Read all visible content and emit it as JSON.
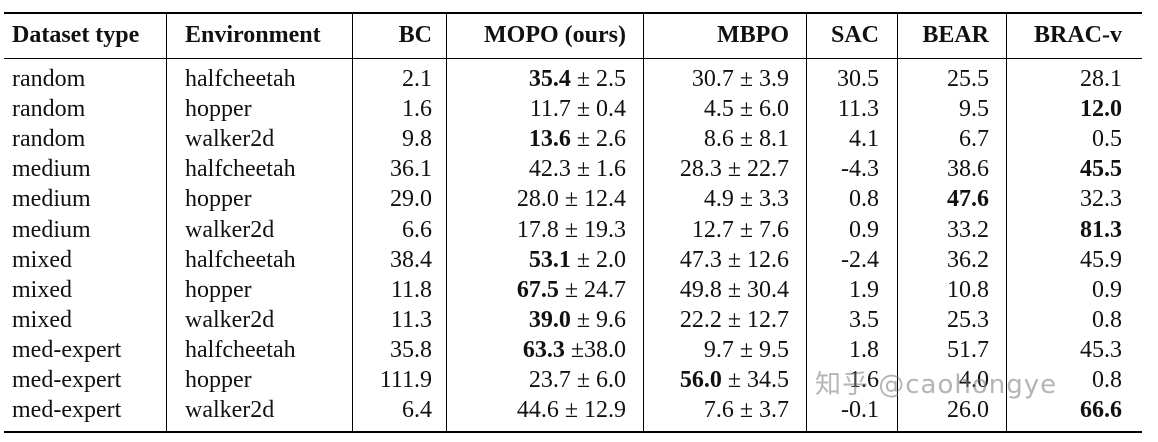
{
  "columns": [
    "Dataset type",
    "Environment",
    "BC",
    "MOPO (ours)",
    "MBPO",
    "SAC",
    "BEAR",
    "BRAC-v"
  ],
  "rows": [
    {
      "dataset": "random",
      "env": "halfcheetah",
      "bc": "2.1",
      "mopo_m": "35.4",
      "mopo_s": "± 2.5",
      "mopo_bold": true,
      "mbpo_m": "30.7",
      "mbpo_s": "± 3.9",
      "mbpo_bold": false,
      "sac": "30.5",
      "bear": "25.5",
      "brac": "28.1",
      "bold": ""
    },
    {
      "dataset": "random",
      "env": "hopper",
      "bc": "1.6",
      "mopo_m": "11.7",
      "mopo_s": "± 0.4",
      "mopo_bold": false,
      "mbpo_m": "4.5",
      "mbpo_s": "± 6.0",
      "mbpo_bold": false,
      "sac": "11.3",
      "bear": "9.5",
      "brac": "12.0",
      "bold": "brac"
    },
    {
      "dataset": "random",
      "env": "walker2d",
      "bc": "9.8",
      "mopo_m": "13.6",
      "mopo_s": "± 2.6",
      "mopo_bold": true,
      "mbpo_m": "8.6",
      "mbpo_s": "± 8.1",
      "mbpo_bold": false,
      "sac": "4.1",
      "bear": "6.7",
      "brac": "0.5",
      "bold": ""
    },
    {
      "dataset": "medium",
      "env": "halfcheetah",
      "bc": "36.1",
      "mopo_m": "42.3",
      "mopo_s": "± 1.6",
      "mopo_bold": false,
      "mbpo_m": "28.3",
      "mbpo_s": "± 22.7",
      "mbpo_bold": false,
      "sac": "-4.3",
      "bear": "38.6",
      "brac": "45.5",
      "bold": "brac"
    },
    {
      "dataset": "medium",
      "env": "hopper",
      "bc": "29.0",
      "mopo_m": "28.0",
      "mopo_s": "± 12.4",
      "mopo_bold": false,
      "mbpo_m": "4.9",
      "mbpo_s": "± 3.3",
      "mbpo_bold": false,
      "sac": "0.8",
      "bear": "47.6",
      "brac": "32.3",
      "bold": "bear"
    },
    {
      "dataset": "medium",
      "env": "walker2d",
      "bc": "6.6",
      "mopo_m": "17.8",
      "mopo_s": "± 19.3",
      "mopo_bold": false,
      "mbpo_m": "12.7",
      "mbpo_s": "± 7.6",
      "mbpo_bold": false,
      "sac": "0.9",
      "bear": "33.2",
      "brac": "81.3",
      "bold": "brac"
    },
    {
      "dataset": "mixed",
      "env": "halfcheetah",
      "bc": "38.4",
      "mopo_m": "53.1",
      "mopo_s": "± 2.0",
      "mopo_bold": true,
      "mbpo_m": "47.3",
      "mbpo_s": "± 12.6",
      "mbpo_bold": false,
      "sac": "-2.4",
      "bear": "36.2",
      "brac": "45.9",
      "bold": ""
    },
    {
      "dataset": "mixed",
      "env": "hopper",
      "bc": "11.8",
      "mopo_m": "67.5",
      "mopo_s": "± 24.7",
      "mopo_bold": true,
      "mbpo_m": "49.8",
      "mbpo_s": "± 30.4",
      "mbpo_bold": false,
      "sac": "1.9",
      "bear": "10.8",
      "brac": "0.9",
      "bold": ""
    },
    {
      "dataset": "mixed",
      "env": "walker2d",
      "bc": "11.3",
      "mopo_m": "39.0",
      "mopo_s": "± 9.6",
      "mopo_bold": true,
      "mbpo_m": "22.2",
      "mbpo_s": "± 12.7",
      "mbpo_bold": false,
      "sac": "3.5",
      "bear": "25.3",
      "brac": "0.8",
      "bold": ""
    },
    {
      "dataset": "med-expert",
      "env": "halfcheetah",
      "bc": "35.8",
      "mopo_m": "63.3",
      "mopo_s": "±38.0",
      "mopo_bold": true,
      "mbpo_m": "9.7",
      "mbpo_s": "± 9.5",
      "mbpo_bold": false,
      "sac": "1.8",
      "bear": "51.7",
      "brac": "45.3",
      "bold": ""
    },
    {
      "dataset": "med-expert",
      "env": "hopper",
      "bc": "111.9",
      "mopo_m": "23.7",
      "mopo_s": "± 6.0",
      "mopo_bold": false,
      "mbpo_m": "56.0",
      "mbpo_s": "± 34.5",
      "mbpo_bold": true,
      "sac": "1.6",
      "bear": "4.0",
      "brac": "0.8",
      "bold": ""
    },
    {
      "dataset": "med-expert",
      "env": "walker2d",
      "bc": "6.4",
      "mopo_m": "44.6",
      "mopo_s": "± 12.9",
      "mopo_bold": false,
      "mbpo_m": "7.6",
      "mbpo_s": "± 3.7",
      "mbpo_bold": false,
      "sac": "-0.1",
      "bear": "26.0",
      "brac": "66.6",
      "bold": "brac"
    }
  ],
  "watermark": "知乎 @caohongye"
}
